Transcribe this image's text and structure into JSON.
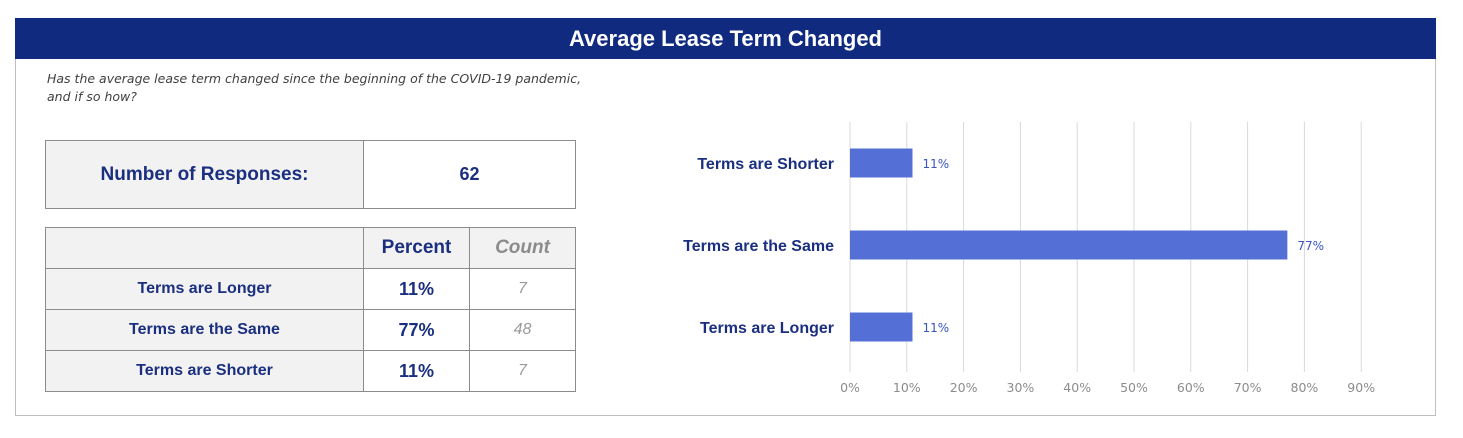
{
  "title": "Average Lease Term Changed",
  "question": "Has the average lease term changed since the beginning of the COVID-19 pandemic, and if so how?",
  "responses": {
    "label": "Number of Responses:",
    "value": "62"
  },
  "table": {
    "headers": {
      "percent": "Percent",
      "count": "Count"
    },
    "rows": [
      {
        "label": "Terms are Longer",
        "percent": "11%",
        "count": "7"
      },
      {
        "label": "Terms are the Same",
        "percent": "77%",
        "count": "48"
      },
      {
        "label": "Terms are Shorter",
        "percent": "11%",
        "count": "7"
      }
    ]
  },
  "colors": {
    "banner": "#0f2a7f",
    "bar": "#5470d6",
    "text": "#1b2f80"
  },
  "chart_data": {
    "type": "bar",
    "orientation": "horizontal",
    "categories": [
      "Terms are Shorter",
      "Terms are the Same",
      "Terms are Longer"
    ],
    "values": [
      11,
      77,
      11
    ],
    "data_labels": [
      "11%",
      "77%",
      "11%"
    ],
    "xlim": [
      0,
      90
    ],
    "ticks": [
      "0%",
      "10%",
      "20%",
      "30%",
      "40%",
      "50%",
      "60%",
      "70%",
      "80%",
      "90%"
    ],
    "grid": "vertical",
    "title": "",
    "xlabel": "",
    "ylabel": ""
  }
}
